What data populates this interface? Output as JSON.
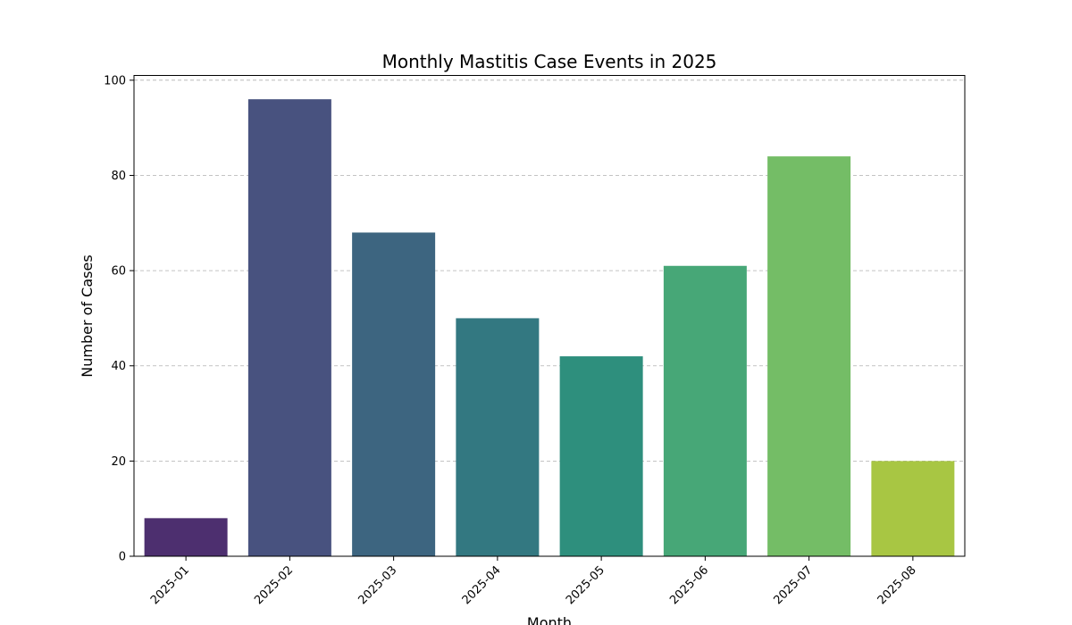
{
  "chart_data": {
    "type": "bar",
    "title": "Monthly Mastitis Case Events in 2025",
    "xlabel": "Month",
    "ylabel": "Number of Cases",
    "categories": [
      "2025-01",
      "2025-02",
      "2025-03",
      "2025-04",
      "2025-05",
      "2025-06",
      "2025-07",
      "2025-08"
    ],
    "values": [
      8,
      96,
      68,
      50,
      42,
      61,
      84,
      20
    ],
    "colors": [
      "#4d2f6f",
      "#48527f",
      "#3d6580",
      "#337881",
      "#2e8f7d",
      "#47a777",
      "#74bd66",
      "#a8c643"
    ],
    "ylim": [
      0,
      101
    ],
    "yticks": [
      0,
      20,
      40,
      60,
      80,
      100
    ],
    "grid": "y-dashed",
    "xtick_rotation": 45
  }
}
